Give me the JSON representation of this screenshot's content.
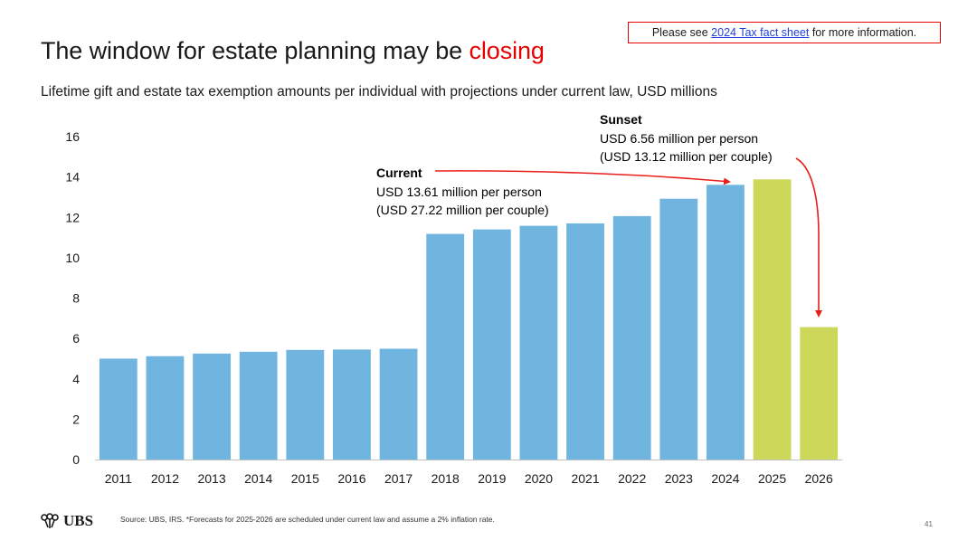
{
  "title": {
    "main": "The window for estate planning may be ",
    "accent": "closing"
  },
  "subtitle": "Lifetime gift and estate tax exemption amounts per individual with projections under current law, USD millions",
  "notice": {
    "prefix": "Please see ",
    "link": "2024 Tax fact sheet",
    "suffix": " for more information."
  },
  "footer": {
    "logo": "UBS",
    "source": "Source: UBS, IRS. *Forecasts for 2025-2026 are scheduled under current law and assume a 2% inflation rate.",
    "page": "41"
  },
  "colors": {
    "actual": "#6fb5df",
    "forecast": "#cdd85a",
    "accent": "#e60000",
    "arrow": "#e8201c"
  },
  "annotations": {
    "current": {
      "title": "Current",
      "line1": "USD 13.61 million per person",
      "line2": "(USD 27.22 million per couple)"
    },
    "sunset": {
      "title": "Sunset",
      "line1": "USD 6.56 million per person",
      "line2": "(USD 13.12 million per couple)"
    }
  },
  "chart_data": {
    "type": "bar",
    "title": "",
    "xlabel": "",
    "ylabel": "",
    "ylim": [
      0,
      16
    ],
    "yticks": [
      0,
      2,
      4,
      6,
      8,
      10,
      12,
      14,
      16
    ],
    "grid": false,
    "categories": [
      "2011",
      "2012",
      "2013",
      "2014",
      "2015",
      "2016",
      "2017",
      "2018",
      "2019",
      "2020",
      "2021",
      "2022",
      "2023",
      "2024",
      "2025",
      "2026"
    ],
    "values": [
      5.0,
      5.12,
      5.25,
      5.34,
      5.43,
      5.45,
      5.49,
      11.18,
      11.4,
      11.58,
      11.7,
      12.06,
      12.92,
      13.61,
      13.88,
      6.56
    ],
    "forecast_categories": [
      "2025",
      "2026"
    ]
  }
}
